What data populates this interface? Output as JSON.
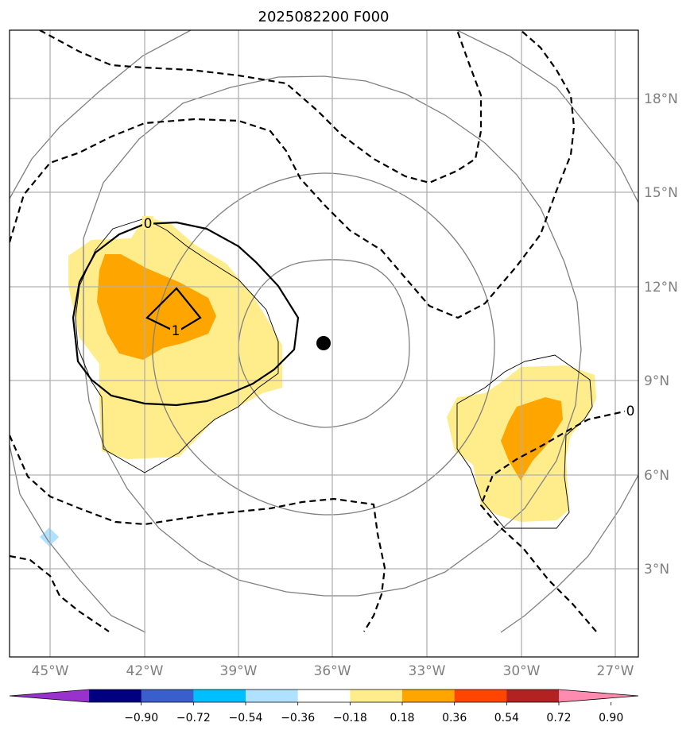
{
  "title": "2025082200 F000",
  "lon_labels": [
    "45°W",
    "42°W",
    "39°W",
    "36°W",
    "33°W",
    "30°W",
    "27°W"
  ],
  "lat_labels": [
    "18°N",
    "15°N",
    "12°N",
    "9°N",
    "6°N",
    "3°N"
  ],
  "contour_labels": {
    "left_zero": "0",
    "left_one": "1",
    "right_zero": "0"
  },
  "colorbar": {
    "tick_labels": [
      "−0.90",
      "−0.72",
      "−0.54",
      "−0.36",
      "−0.18",
      "0.18",
      "0.36",
      "0.54",
      "0.72",
      "0.90"
    ],
    "colors": [
      "#9932cc",
      "#000080",
      "#3a5fcd",
      "#00bfff",
      "#b0e2ff",
      "#ffffff",
      "#ffec8b",
      "#ffa500",
      "#ff4500",
      "#b22222",
      "#ff8bb0"
    ]
  },
  "colors": {
    "shade_low": "#ffec8b",
    "shade_high": "#ffa500",
    "shade_neg": "#b0e2ff",
    "grid": "#b0b0b0",
    "range_rings": "#808080",
    "storm_center": "#000000"
  }
}
